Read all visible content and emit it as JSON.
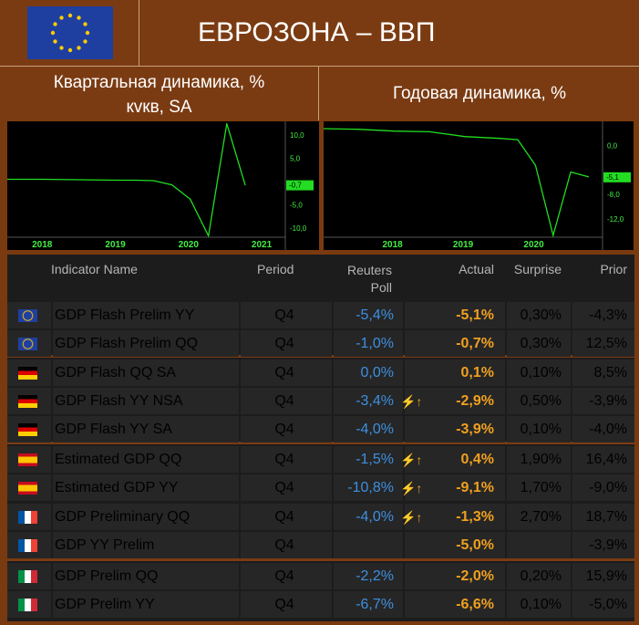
{
  "header": {
    "title": "ЕВРОЗОНА – ВВП",
    "flag": "eu-flag"
  },
  "subheaders": {
    "left_line1": "Квартальная динамика, %",
    "left_line2": "кvкв, SA",
    "right": "Годовая динамика, %"
  },
  "chart_data": [
    {
      "type": "line",
      "title": "Квартальная динамика, % кvкв, SA",
      "x_tick_labels": [
        "2018",
        "2019",
        "2020",
        "2021"
      ],
      "y_tick_labels": [
        "10,0",
        "5,0",
        "-5,0",
        "-10,0"
      ],
      "current_label": "-0,7",
      "ylim": [
        -12,
        13
      ],
      "x": [
        2017.5,
        2018.0,
        2018.5,
        2019.0,
        2019.25,
        2019.5,
        2019.75,
        2020.0,
        2020.25,
        2020.5,
        2020.75
      ],
      "values": [
        0.5,
        0.5,
        0.4,
        0.3,
        0.3,
        0.2,
        -0.7,
        -3.8,
        -11.7,
        12.5,
        -0.7
      ],
      "color": "#22dd22"
    },
    {
      "type": "line",
      "title": "Годовая динамика, %",
      "x_tick_labels": [
        "2018",
        "2019",
        "2020"
      ],
      "y_tick_labels": [
        "0,0",
        "-8,0",
        "-12,0"
      ],
      "current_label": "-5,1",
      "ylim": [
        -15,
        4
      ],
      "x": [
        2017.0,
        2017.5,
        2018.0,
        2018.5,
        2019.0,
        2019.5,
        2019.75,
        2020.0,
        2020.25,
        2020.5,
        2020.75
      ],
      "values": [
        2.8,
        2.7,
        2.4,
        2.3,
        1.5,
        1.2,
        1.0,
        -3.2,
        -14.7,
        -4.3,
        -5.1
      ],
      "color": "#22dd22"
    }
  ],
  "table": {
    "headers": {
      "name": "Indicator Name",
      "period": "Period",
      "poll_line1": "Reuters",
      "poll_line2": "Poll",
      "actual": "Actual",
      "surprise": "Surprise",
      "prior": "Prior"
    },
    "rows": [
      {
        "flag": "eu",
        "name": "GDP Flash Prelim YY",
        "period": "Q4",
        "poll": "-5,4%",
        "flash": "",
        "actual": "-5,1%",
        "surprise": "0,30%",
        "prior": "-4,3%"
      },
      {
        "flag": "eu",
        "name": "GDP Flash Prelim QQ",
        "period": "Q4",
        "poll": "-1,0%",
        "flash": "",
        "actual": "-0,7%",
        "surprise": "0,30%",
        "prior": "12,5%"
      },
      {
        "flag": "de",
        "name": "GDP Flash QQ SA",
        "period": "Q4",
        "poll": "0,0%",
        "flash": "",
        "actual": "0,1%",
        "surprise": "0,10%",
        "prior": "8,5%"
      },
      {
        "flag": "de",
        "name": "GDP Flash YY NSA",
        "period": "Q4",
        "poll": "-3,4%",
        "flash": "⚡↑",
        "actual": "-2,9%",
        "surprise": "0,50%",
        "prior": "-3,9%"
      },
      {
        "flag": "de",
        "name": "GDP Flash YY SA",
        "period": "Q4",
        "poll": "-4,0%",
        "flash": "",
        "actual": "-3,9%",
        "surprise": "0,10%",
        "prior": "-4,0%"
      },
      {
        "flag": "es",
        "name": "Estimated GDP QQ",
        "period": "Q4",
        "poll": "-1,5%",
        "flash": "⚡↑",
        "actual": "0,4%",
        "surprise": "1,90%",
        "prior": "16,4%"
      },
      {
        "flag": "es",
        "name": "Estimated GDP YY",
        "period": "Q4",
        "poll": "-10,8%",
        "flash": "⚡↑",
        "actual": "-9,1%",
        "surprise": "1,70%",
        "prior": "-9,0%"
      },
      {
        "flag": "fr",
        "name": "GDP Preliminary QQ",
        "period": "Q4",
        "poll": "-4,0%",
        "flash": "⚡↑",
        "actual": "-1,3%",
        "surprise": "2,70%",
        "prior": "18,7%"
      },
      {
        "flag": "fr",
        "name": "GDP YY Prelim",
        "period": "Q4",
        "poll": "",
        "flash": "",
        "actual": "-5,0%",
        "surprise": "",
        "prior": "-3,9%"
      },
      {
        "flag": "it",
        "name": "GDP Prelim QQ",
        "period": "Q4",
        "poll": "-2,2%",
        "flash": "",
        "actual": "-2,0%",
        "surprise": "0,20%",
        "prior": "15,9%"
      },
      {
        "flag": "it",
        "name": "GDP Prelim YY",
        "period": "Q4",
        "poll": "-6,7%",
        "flash": "",
        "actual": "-6,6%",
        "surprise": "0,10%",
        "prior": "-5,0%"
      }
    ]
  }
}
